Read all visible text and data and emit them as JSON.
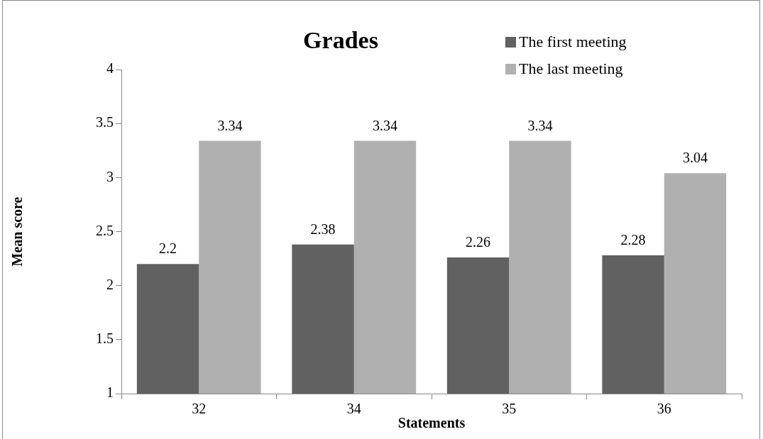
{
  "chart_data": {
    "type": "bar",
    "title": "Grades",
    "xlabel": "Statements",
    "ylabel": "Mean score",
    "categories": [
      "32",
      "34",
      "35",
      "36"
    ],
    "series": [
      {
        "name": "The first meeting",
        "color": "#616161",
        "values": [
          2.2,
          2.38,
          2.26,
          2.28
        ]
      },
      {
        "name": "The last meeting",
        "color": "#b0b0b0",
        "values": [
          3.34,
          3.34,
          3.34,
          3.04
        ]
      }
    ],
    "ylim": [
      1,
      4
    ],
    "yticks": [
      1,
      1.5,
      2,
      2.5,
      3,
      3.5,
      4
    ],
    "grid": false,
    "legend": "top right",
    "data_labels": true
  }
}
